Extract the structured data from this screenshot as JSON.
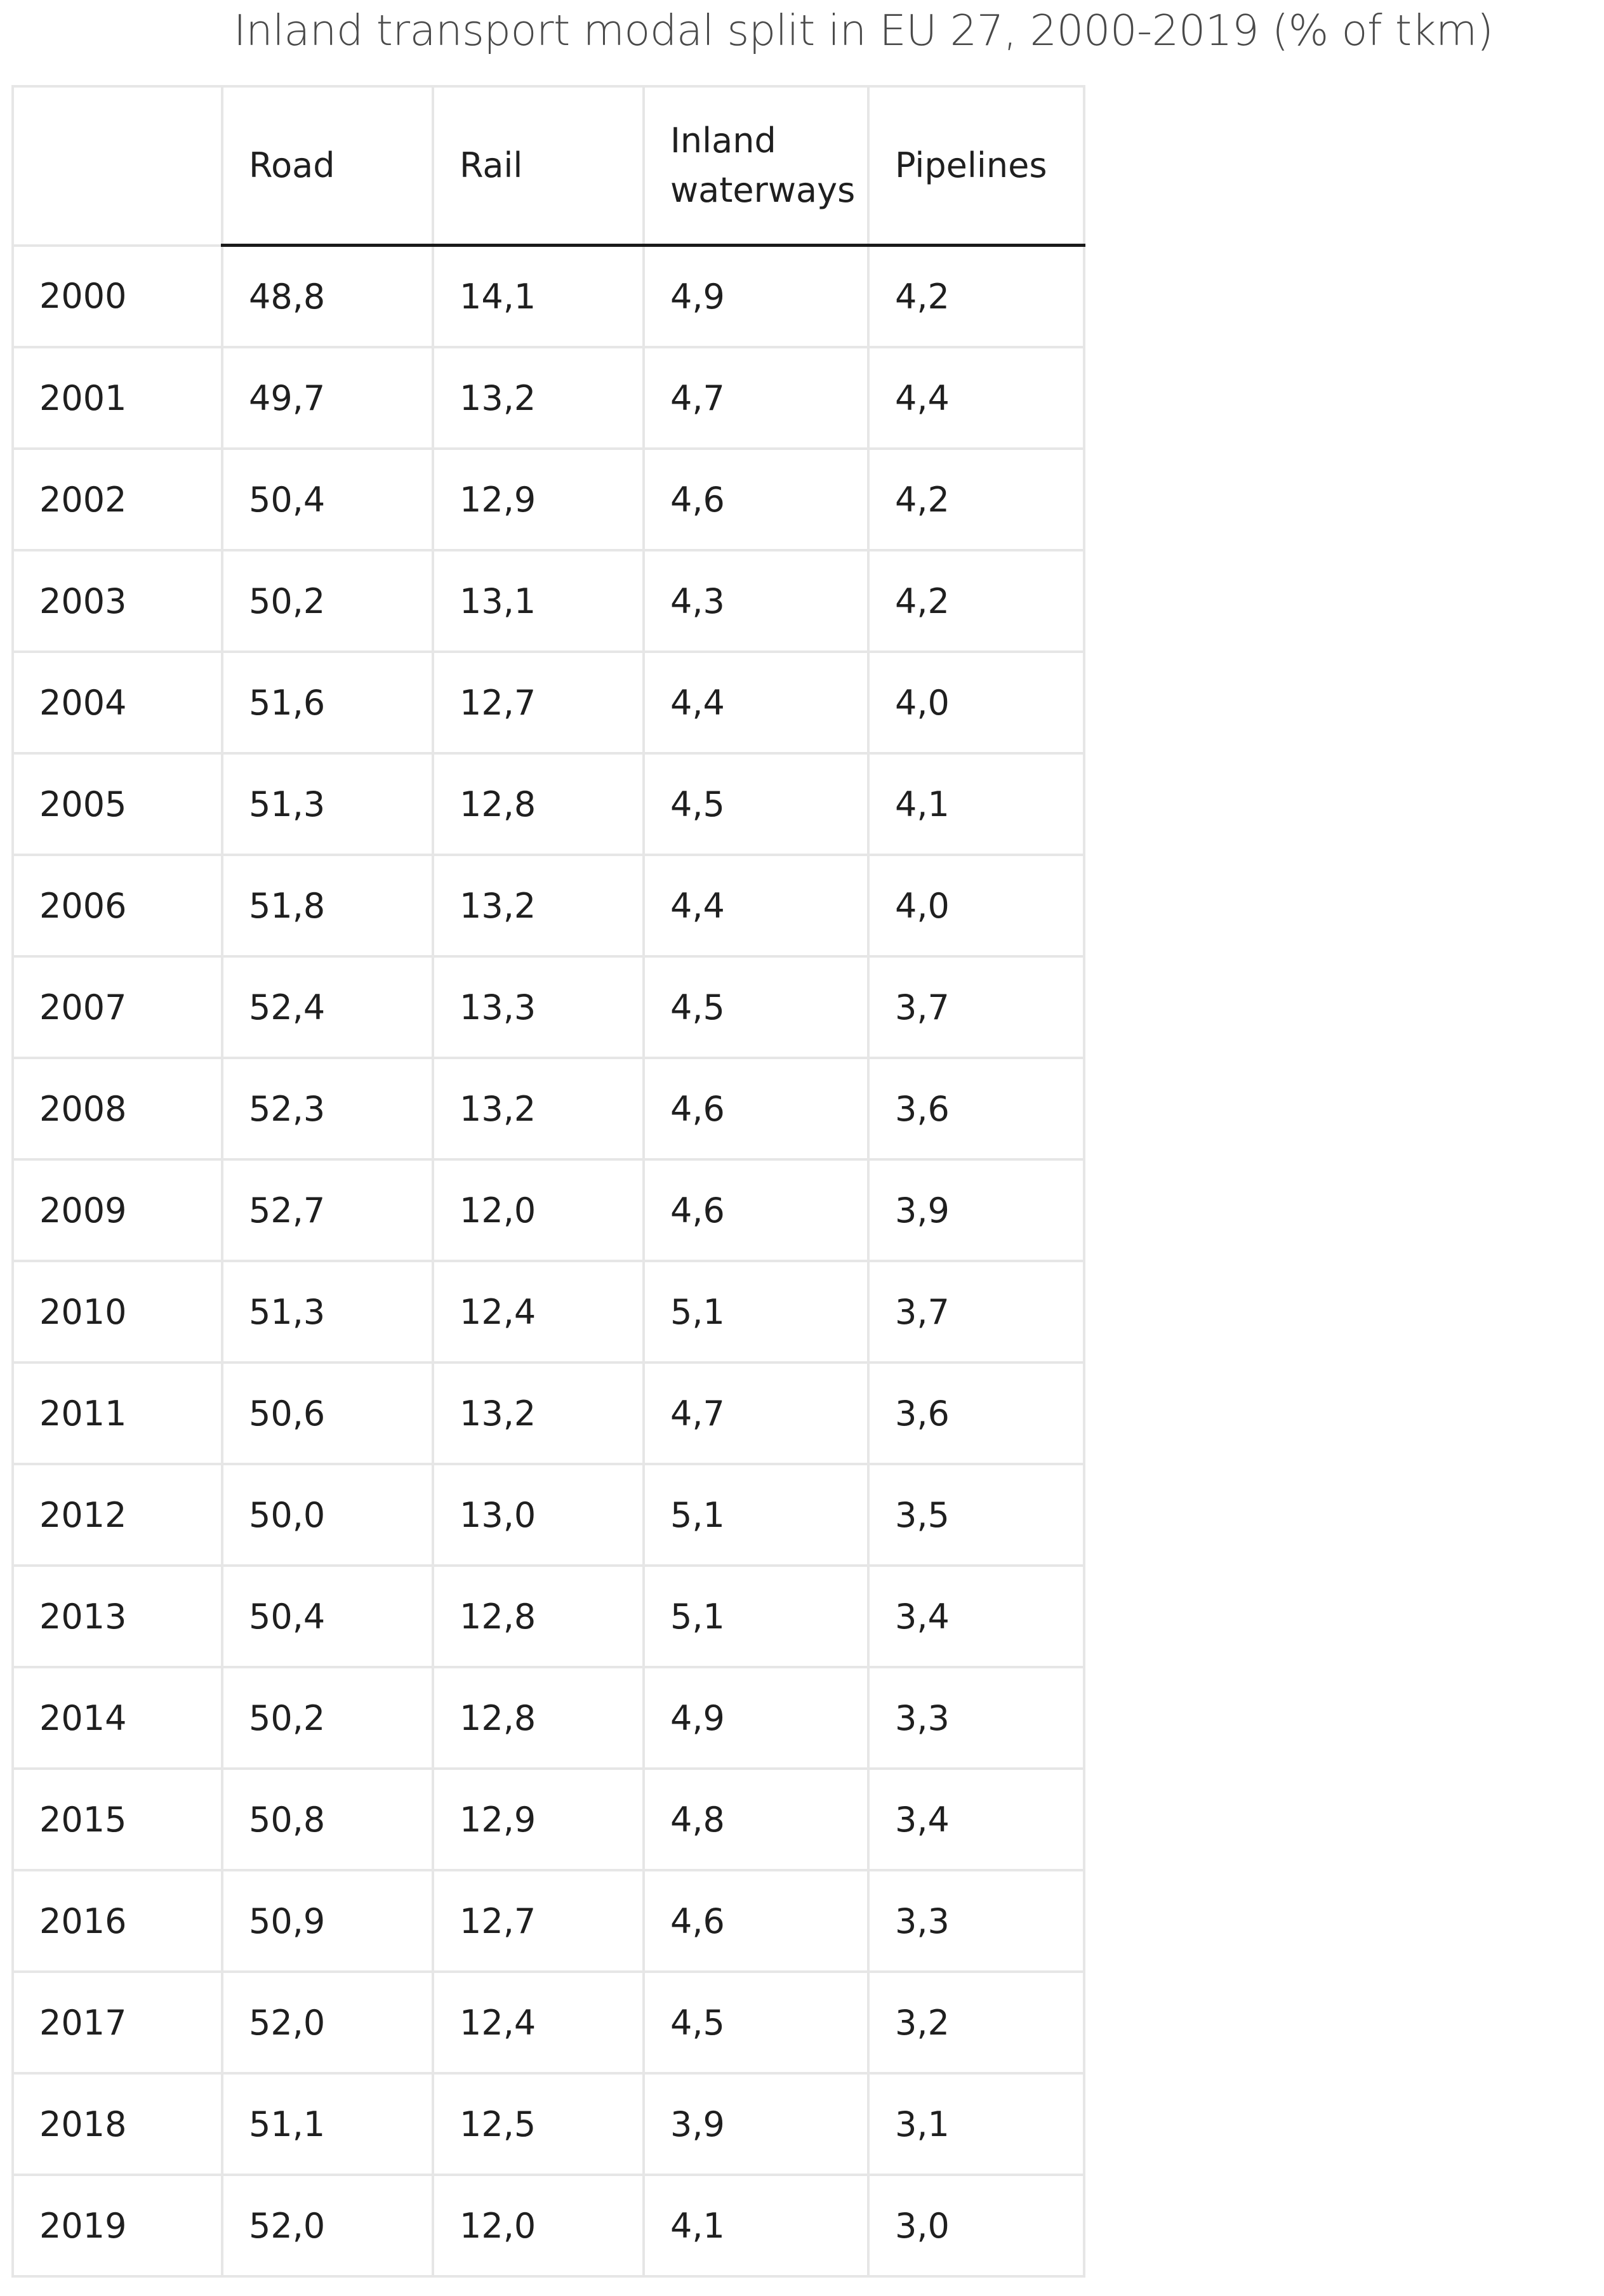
{
  "title": "Inland transport modal split in EU 27, 2000-2019 (% of tkm)",
  "chart_data": {
    "type": "table",
    "title": "Inland transport modal split in EU 27, 2000-2019 (% of tkm)",
    "columns": [
      "",
      "Road",
      "Rail",
      "Inland waterways",
      "Pipelines"
    ],
    "rows": [
      [
        "2000",
        "48,8",
        "14,1",
        "4,9",
        "4,2"
      ],
      [
        "2001",
        "49,7",
        "13,2",
        "4,7",
        "4,4"
      ],
      [
        "2002",
        "50,4",
        "12,9",
        "4,6",
        "4,2"
      ],
      [
        "2003",
        "50,2",
        "13,1",
        "4,3",
        "4,2"
      ],
      [
        "2004",
        "51,6",
        "12,7",
        "4,4",
        "4,0"
      ],
      [
        "2005",
        "51,3",
        "12,8",
        "4,5",
        "4,1"
      ],
      [
        "2006",
        "51,8",
        "13,2",
        "4,4",
        "4,0"
      ],
      [
        "2007",
        "52,4",
        "13,3",
        "4,5",
        "3,7"
      ],
      [
        "2008",
        "52,3",
        "13,2",
        "4,6",
        "3,6"
      ],
      [
        "2009",
        "52,7",
        "12,0",
        "4,6",
        "3,9"
      ],
      [
        "2010",
        "51,3",
        "12,4",
        "5,1",
        "3,7"
      ],
      [
        "2011",
        "50,6",
        "13,2",
        "4,7",
        "3,6"
      ],
      [
        "2012",
        "50,0",
        "13,0",
        "5,1",
        "3,5"
      ],
      [
        "2013",
        "50,4",
        "12,8",
        "5,1",
        "3,4"
      ],
      [
        "2014",
        "50,2",
        "12,8",
        "4,9",
        "3,3"
      ],
      [
        "2015",
        "50,8",
        "12,9",
        "4,8",
        "3,4"
      ],
      [
        "2016",
        "50,9",
        "12,7",
        "4,6",
        "3,3"
      ],
      [
        "2017",
        "52,0",
        "12,4",
        "4,5",
        "3,2"
      ],
      [
        "2018",
        "51,1",
        "12,5",
        "3,9",
        "3,1"
      ],
      [
        "2019",
        "52,0",
        "12,0",
        "4,1",
        "3,0"
      ]
    ]
  }
}
